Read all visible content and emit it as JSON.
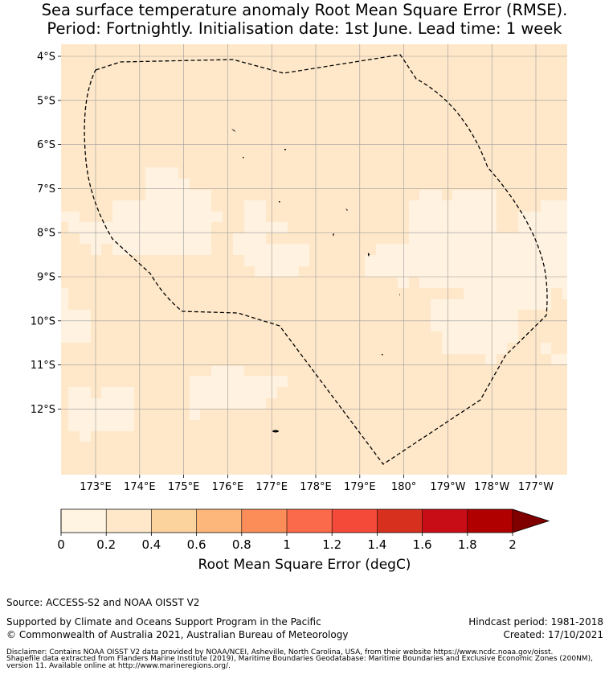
{
  "title_line1": "Sea surface temperature anomaly Root Mean Square Error (RMSE).",
  "title_line2": "Period: Fortnightly. Initialisation date: 1st June. Lead time: 1 week",
  "map": {
    "lat_labels": [
      "4°S",
      "5°S",
      "6°S",
      "7°S",
      "8°S",
      "9°S",
      "10°S",
      "11°S",
      "12°S"
    ],
    "lon_labels": [
      "173°E",
      "174°E",
      "175°E",
      "176°E",
      "177°E",
      "178°E",
      "179°E",
      "180°",
      "179°W",
      "178°W",
      "177°W"
    ],
    "colors": {
      "range_0_0_2": "#fff2e0",
      "range_0_2_0_4": "#ffe8c9",
      "boundary": "#000000",
      "grid": "#9a9a9a"
    }
  },
  "colorbar": {
    "label": "Root Mean Square Error (degC)",
    "tick_labels": [
      "0",
      "0.2",
      "0.4",
      "0.6",
      "0.8",
      "1",
      "1.2",
      "1.4",
      "1.6",
      "1.8",
      "2"
    ],
    "colors": [
      "#fff3e1",
      "#ffe8c9",
      "#fdd39d",
      "#fdb77b",
      "#fc8d59",
      "#fb6a4a",
      "#f44a3a",
      "#d7301f",
      "#c90d16",
      "#b00000"
    ],
    "extend_color": "#800000"
  },
  "footer": {
    "source": "Source: ACCESS-S2 and NOAA OISST V2",
    "support": "Supported by Climate and Oceans Support Program in the Pacific",
    "copyright": "© Commonwealth of Australia 2021, Australian Bureau of Meteorology",
    "hindcast": "Hindcast period: 1981-2018",
    "created": "Created: 17/10/2021",
    "disclaimer1": "Disclaimer: Contains NOAA OISST V2 data provided by NOAA/NCEI, Asheville, North Carolina, USA, from their website https://www.ncdc.noaa.gov/oisst.",
    "disclaimer2": "Shapefile data extracted from Flanders Marine Institute (2019), Maritime Boundaries Geodatabase: Maritime Boundaries and Exclusive Economic Zones (200NM),",
    "disclaimer3": "version 11. Available online at http://www.marineregions.org/."
  }
}
